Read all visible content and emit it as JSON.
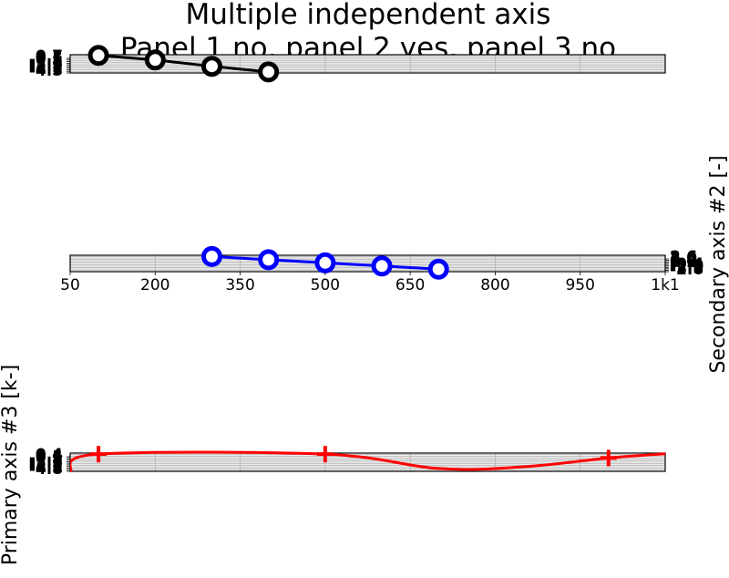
{
  "chart_data": {
    "type": "line",
    "title": [
      "Multiple independent axis",
      "Panel 1 no, panel 2 yes, panel 3 no"
    ],
    "xlim": [
      50,
      1100
    ],
    "xticks": [
      {
        "value": 50,
        "label": "50"
      },
      {
        "value": 200,
        "label": "200"
      },
      {
        "value": 350,
        "label": "350"
      },
      {
        "value": 500,
        "label": "500"
      },
      {
        "value": 650,
        "label": "650"
      },
      {
        "value": 800,
        "label": "800"
      },
      {
        "value": 950,
        "label": "950"
      },
      {
        "value": 1100,
        "label": "1k1"
      }
    ],
    "panels": [
      {
        "name": "panel-1",
        "line_color": "#000000",
        "marker": "circle",
        "ylabel": "",
        "ylabel_side": "",
        "ytick_side": "left",
        "ylim": [
          -4.5,
          0.7
        ],
        "ytick_labels": [
          "0.7",
          "0.1",
          "-0.5",
          "-1.1",
          "-1.7",
          "-2.3",
          "-2.9",
          "-3.5",
          "-4.1",
          "-4.5"
        ],
        "x": [
          100,
          200,
          300,
          400
        ],
        "y": [
          0.5,
          -0.8,
          -2.6,
          -4.2
        ]
      },
      {
        "name": "panel-2",
        "line_color": "#0000ff",
        "marker": "circle",
        "ylabel": "Secondary axis #2 [-]",
        "ylabel_side": "right",
        "ytick_side": "right",
        "ylim": [
          -2.6,
          2.6
        ],
        "ytick_labels": [
          "2.6",
          "2.0",
          "1.4",
          "0.8",
          "0.2",
          "-0.4",
          "-1.0",
          "-1.6",
          "-2.2",
          "-2.6"
        ],
        "x": [
          300,
          400,
          500,
          600,
          700
        ],
        "y": [
          2.2,
          1.2,
          0.2,
          -0.8,
          -1.8
        ]
      },
      {
        "name": "panel-3",
        "line_color": "#ff0000",
        "marker": "plus",
        "ylabel": "Primary axis #3 [k-]",
        "ylabel_side": "left",
        "ytick_side": "left",
        "ylim": [
          -4.8,
          0.4
        ],
        "ytick_labels": [
          "0.4",
          "0.1",
          "-0.5",
          "-1.1",
          "-1.7",
          "-2.3",
          "-2.9",
          "-3.5",
          "-4.1",
          "-4.8"
        ],
        "x": [
          100,
          500,
          1000
        ],
        "y": [
          0.1,
          0.1,
          -1.0
        ],
        "curve": {
          "x": [
            50,
            100,
            500,
            700,
            850,
            1000,
            1100
          ],
          "y": [
            -4.8,
            0.1,
            0.1,
            -4.0,
            -3.5,
            -1.0,
            0.2
          ]
        }
      }
    ],
    "grid": true
  }
}
